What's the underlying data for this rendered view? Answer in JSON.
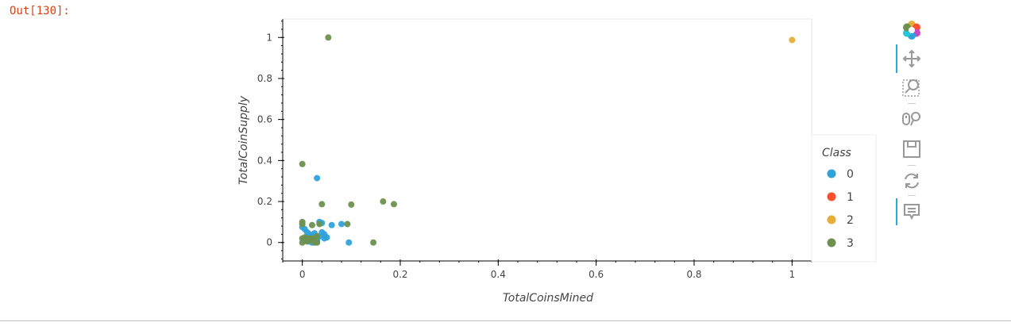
{
  "cell": {
    "out_prompt": "Out[130]:"
  },
  "chart_data": {
    "type": "scatter",
    "xlabel": "TotalCoinsMined",
    "ylabel": "TotalCoinSupply",
    "xlim": [
      -0.04,
      1.04
    ],
    "ylim": [
      -0.09,
      1.09
    ],
    "x_ticks": [
      0,
      0.2,
      0.4,
      0.6,
      0.8,
      1
    ],
    "x_tick_labels": [
      "0",
      "0.2",
      "0.4",
      "0.6",
      "0.8",
      "1"
    ],
    "y_ticks": [
      0,
      0.2,
      0.4,
      0.6,
      0.8,
      1
    ],
    "y_tick_labels": [
      "0",
      "0.2",
      "0.4",
      "0.6",
      "0.8",
      "1"
    ],
    "grid": false,
    "legend": {
      "title": "Class",
      "placement": "right"
    },
    "series": [
      {
        "name": "0",
        "color": "#30a2da",
        "points": [
          [
            0.03,
            0.314
          ],
          [
            0.0,
            0.075
          ],
          [
            0.005,
            0.065
          ],
          [
            0.01,
            0.05
          ],
          [
            0.015,
            0.04
          ],
          [
            0.02,
            0.03
          ],
          [
            0.025,
            0.02
          ],
          [
            0.03,
            0.015
          ],
          [
            0.035,
            0.03
          ],
          [
            0.04,
            0.05
          ],
          [
            0.045,
            0.04
          ],
          [
            0.05,
            0.025
          ],
          [
            0.06,
            0.085
          ],
          [
            0.04,
            0.095
          ],
          [
            0.035,
            0.1
          ],
          [
            0.08,
            0.09
          ],
          [
            0.095,
            0.0
          ],
          [
            0.02,
            0.0
          ],
          [
            0.015,
            0.005
          ],
          [
            0.01,
            0.01
          ],
          [
            0.03,
            0.005
          ],
          [
            0.025,
            0.045
          ],
          [
            0.045,
            0.02
          ],
          [
            0.005,
            0.02
          ]
        ]
      },
      {
        "name": "1",
        "color": "#fc4f30",
        "points": []
      },
      {
        "name": "2",
        "color": "#e5ae38",
        "points": [
          [
            1.0,
            0.988
          ]
        ]
      },
      {
        "name": "3",
        "color": "#6d904f",
        "points": [
          [
            0.053,
            1.0
          ],
          [
            0.0,
            0.383
          ],
          [
            0.04,
            0.187
          ],
          [
            0.1,
            0.185
          ],
          [
            0.165,
            0.2
          ],
          [
            0.187,
            0.187
          ],
          [
            0.145,
            0.0
          ],
          [
            0.0,
            0.1
          ],
          [
            0.0,
            0.09
          ],
          [
            0.092,
            0.09
          ],
          [
            0.02,
            0.085
          ],
          [
            0.035,
            0.09
          ],
          [
            0.0,
            0.02
          ],
          [
            0.005,
            0.01
          ],
          [
            0.01,
            0.005
          ],
          [
            0.015,
            0.02
          ],
          [
            0.02,
            0.01
          ],
          [
            0.025,
            0.0
          ],
          [
            0.03,
            0.0
          ],
          [
            0.0,
            0.0
          ],
          [
            0.005,
            0.025
          ],
          [
            0.03,
            0.03
          ],
          [
            0.02,
            0.02
          ],
          [
            0.01,
            0.015
          ]
        ]
      }
    ]
  },
  "toolbar": {
    "tools": [
      {
        "name": "bokeh-logo-icon",
        "active": false
      },
      {
        "name": "pan-tool-icon",
        "active": true
      },
      {
        "name": "box-zoom-tool-icon",
        "active": false
      },
      {
        "name": "wheel-zoom-tool-icon",
        "active": false
      },
      {
        "name": "save-tool-icon",
        "active": false
      },
      {
        "name": "reset-tool-icon",
        "active": false
      },
      {
        "name": "hover-tool-icon",
        "active": true
      }
    ]
  }
}
